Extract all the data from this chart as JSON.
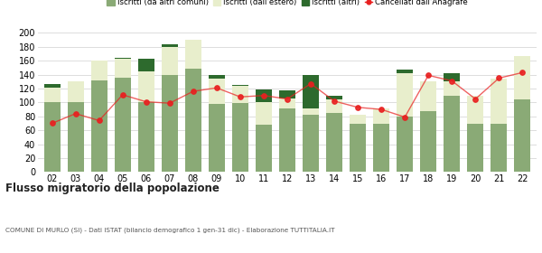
{
  "years": [
    "02",
    "03",
    "04",
    "05",
    "06",
    "07",
    "08",
    "09",
    "10",
    "11",
    "12",
    "13",
    "14",
    "15",
    "16",
    "17",
    "18",
    "19",
    "20",
    "21",
    "22"
  ],
  "iscritti_altri_comuni": [
    101,
    100,
    132,
    136,
    101,
    139,
    149,
    98,
    99,
    68,
    92,
    82,
    85,
    70,
    70,
    80,
    88,
    110,
    70,
    69,
    105
  ],
  "iscritti_estero": [
    20,
    30,
    28,
    27,
    44,
    41,
    41,
    36,
    25,
    33,
    14,
    10,
    20,
    12,
    22,
    62,
    42,
    20,
    39,
    65,
    62
  ],
  "iscritti_altri": [
    5,
    0,
    0,
    1,
    18,
    3,
    0,
    5,
    1,
    18,
    12,
    48,
    5,
    0,
    0,
    5,
    0,
    12,
    0,
    0,
    0
  ],
  "cancellati": [
    70,
    84,
    74,
    111,
    101,
    99,
    116,
    121,
    108,
    110,
    105,
    127,
    102,
    93,
    90,
    79,
    139,
    131,
    105,
    135,
    143
  ],
  "color_iscritti_altri_comuni": "#8aaa76",
  "color_iscritti_estero": "#e8eecc",
  "color_iscritti_altri": "#2d6a2d",
  "color_cancellati": "#e82020",
  "ylim": [
    0,
    200
  ],
  "yticks": [
    0,
    20,
    40,
    60,
    80,
    100,
    120,
    140,
    160,
    180,
    200
  ],
  "title": "Flusso migratorio della popolazione",
  "subtitle": "COMUNE DI MURLO (SI) - Dati ISTAT (bilancio demografico 1 gen-31 dic) - Elaborazione TUTTITALIA.IT",
  "legend_labels": [
    "Iscritti (da altri comuni)",
    "Iscritti (dall'estero)",
    "Iscritti (altri)",
    "Cancellati dall'Anagrafe"
  ],
  "bg_color": "#ffffff",
  "grid_color": "#d8d8d8"
}
